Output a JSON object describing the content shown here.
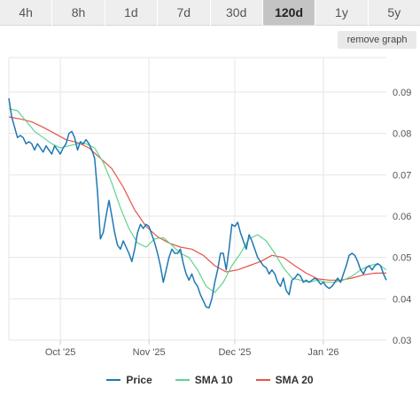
{
  "tabs": [
    {
      "label": "4h",
      "active": false
    },
    {
      "label": "8h",
      "active": false
    },
    {
      "label": "1d",
      "active": false
    },
    {
      "label": "7d",
      "active": false
    },
    {
      "label": "30d",
      "active": false
    },
    {
      "label": "120d",
      "active": true
    },
    {
      "label": "1y",
      "active": false
    },
    {
      "label": "5y",
      "active": false
    }
  ],
  "remove_graph_label": "remove graph",
  "colors": {
    "price": "#1f77b4",
    "sma10": "#5fd38d",
    "sma20": "#e8534a",
    "grid": "#e6e6e6"
  },
  "chart_data": {
    "type": "line",
    "x_start": "2025-09-13",
    "x_end": "2026-01-23",
    "ylim": [
      0.03,
      0.09
    ],
    "yticks": [
      0.03,
      0.04,
      0.05,
      0.06,
      0.07,
      0.08,
      0.09
    ],
    "ytick_labels": [
      "0.03",
      "0.04",
      "0.05",
      "0.06",
      "0.07",
      "0.08",
      "0.09"
    ],
    "xticks": [
      {
        "date": "2025-10-01",
        "label": "Oct '25"
      },
      {
        "date": "2025-11-01",
        "label": "Nov '25"
      },
      {
        "date": "2025-12-01",
        "label": "Dec '25"
      },
      {
        "date": "2026-01-01",
        "label": "Jan '26"
      }
    ],
    "grid": true,
    "legend_position": "bottom",
    "series": [
      {
        "name": "Price",
        "color": "#1f77b4",
        "points": [
          [
            "2025-09-13",
            0.0885
          ],
          [
            "2025-09-14",
            0.084
          ],
          [
            "2025-09-15",
            0.0815
          ],
          [
            "2025-09-16",
            0.079
          ],
          [
            "2025-09-17",
            0.0795
          ],
          [
            "2025-09-18",
            0.079
          ],
          [
            "2025-09-19",
            0.0775
          ],
          [
            "2025-09-20",
            0.078
          ],
          [
            "2025-09-21",
            0.0775
          ],
          [
            "2025-09-22",
            0.076
          ],
          [
            "2025-09-23",
            0.0775
          ],
          [
            "2025-09-24",
            0.0765
          ],
          [
            "2025-09-25",
            0.0755
          ],
          [
            "2025-09-26",
            0.077
          ],
          [
            "2025-09-27",
            0.076
          ],
          [
            "2025-09-28",
            0.075
          ],
          [
            "2025-09-29",
            0.077
          ],
          [
            "2025-09-30",
            0.076
          ],
          [
            "2025-10-01",
            0.075
          ],
          [
            "2025-10-02",
            0.0765
          ],
          [
            "2025-10-03",
            0.0775
          ],
          [
            "2025-10-04",
            0.08
          ],
          [
            "2025-10-05",
            0.0805
          ],
          [
            "2025-10-06",
            0.079
          ],
          [
            "2025-10-07",
            0.076
          ],
          [
            "2025-10-08",
            0.078
          ],
          [
            "2025-10-09",
            0.0775
          ],
          [
            "2025-10-10",
            0.0785
          ],
          [
            "2025-10-11",
            0.0775
          ],
          [
            "2025-10-12",
            0.076
          ],
          [
            "2025-10-13",
            0.074
          ],
          [
            "2025-10-14",
            0.066
          ],
          [
            "2025-10-15",
            0.0545
          ],
          [
            "2025-10-16",
            0.056
          ],
          [
            "2025-10-17",
            0.06
          ],
          [
            "2025-10-18",
            0.0638
          ],
          [
            "2025-10-19",
            0.06
          ],
          [
            "2025-10-20",
            0.056
          ],
          [
            "2025-10-21",
            0.053
          ],
          [
            "2025-10-22",
            0.052
          ],
          [
            "2025-10-23",
            0.054
          ],
          [
            "2025-10-24",
            0.0525
          ],
          [
            "2025-10-25",
            0.051
          ],
          [
            "2025-10-26",
            0.049
          ],
          [
            "2025-10-27",
            0.052
          ],
          [
            "2025-10-28",
            0.056
          ],
          [
            "2025-10-29",
            0.058
          ],
          [
            "2025-10-30",
            0.057
          ],
          [
            "2025-10-31",
            0.058
          ],
          [
            "2025-11-01",
            0.0575
          ],
          [
            "2025-11-02",
            0.0555
          ],
          [
            "2025-11-03",
            0.0535
          ],
          [
            "2025-11-04",
            0.051
          ],
          [
            "2025-11-05",
            0.048
          ],
          [
            "2025-11-06",
            0.044
          ],
          [
            "2025-11-07",
            0.047
          ],
          [
            "2025-11-08",
            0.05
          ],
          [
            "2025-11-09",
            0.052
          ],
          [
            "2025-11-10",
            0.051
          ],
          [
            "2025-11-11",
            0.051
          ],
          [
            "2025-11-12",
            0.052
          ],
          [
            "2025-11-13",
            0.0485
          ],
          [
            "2025-11-14",
            0.046
          ],
          [
            "2025-11-15",
            0.0445
          ],
          [
            "2025-11-16",
            0.046
          ],
          [
            "2025-11-17",
            0.044
          ],
          [
            "2025-11-18",
            0.043
          ],
          [
            "2025-11-19",
            0.041
          ],
          [
            "2025-11-20",
            0.0395
          ],
          [
            "2025-11-21",
            0.038
          ],
          [
            "2025-11-22",
            0.0378
          ],
          [
            "2025-11-23",
            0.04
          ],
          [
            "2025-11-24",
            0.044
          ],
          [
            "2025-11-25",
            0.047
          ],
          [
            "2025-11-26",
            0.051
          ],
          [
            "2025-11-27",
            0.051
          ],
          [
            "2025-11-28",
            0.047
          ],
          [
            "2025-11-29",
            0.052
          ],
          [
            "2025-11-30",
            0.058
          ],
          [
            "2025-12-01",
            0.0575
          ],
          [
            "2025-12-02",
            0.0585
          ],
          [
            "2025-12-03",
            0.056
          ],
          [
            "2025-12-04",
            0.054
          ],
          [
            "2025-12-05",
            0.052
          ],
          [
            "2025-12-06",
            0.0555
          ],
          [
            "2025-12-07",
            0.054
          ],
          [
            "2025-12-08",
            0.052
          ],
          [
            "2025-12-09",
            0.05
          ],
          [
            "2025-12-10",
            0.049
          ],
          [
            "2025-12-11",
            0.048
          ],
          [
            "2025-12-12",
            0.0475
          ],
          [
            "2025-12-13",
            0.046
          ],
          [
            "2025-12-14",
            0.047
          ],
          [
            "2025-12-15",
            0.046
          ],
          [
            "2025-12-16",
            0.044
          ],
          [
            "2025-12-17",
            0.043
          ],
          [
            "2025-12-18",
            0.045
          ],
          [
            "2025-12-19",
            0.042
          ],
          [
            "2025-12-20",
            0.041
          ],
          [
            "2025-12-21",
            0.0445
          ],
          [
            "2025-12-22",
            0.045
          ],
          [
            "2025-12-23",
            0.046
          ],
          [
            "2025-12-24",
            0.0455
          ],
          [
            "2025-12-25",
            0.044
          ],
          [
            "2025-12-26",
            0.0445
          ],
          [
            "2025-12-27",
            0.044
          ],
          [
            "2025-12-28",
            0.0445
          ],
          [
            "2025-12-29",
            0.045
          ],
          [
            "2025-12-30",
            0.0445
          ],
          [
            "2025-12-31",
            0.0435
          ],
          [
            "2026-01-01",
            0.044
          ],
          [
            "2026-01-02",
            0.043
          ],
          [
            "2026-01-03",
            0.0425
          ],
          [
            "2026-01-04",
            0.043
          ],
          [
            "2026-01-05",
            0.044
          ],
          [
            "2026-01-06",
            0.045
          ],
          [
            "2026-01-07",
            0.044
          ],
          [
            "2026-01-08",
            0.046
          ],
          [
            "2026-01-09",
            0.048
          ],
          [
            "2026-01-10",
            0.0505
          ],
          [
            "2026-01-11",
            0.051
          ],
          [
            "2026-01-12",
            0.0505
          ],
          [
            "2026-01-13",
            0.049
          ],
          [
            "2026-01-14",
            0.047
          ],
          [
            "2026-01-15",
            0.046
          ],
          [
            "2026-01-16",
            0.0475
          ],
          [
            "2026-01-17",
            0.048
          ],
          [
            "2026-01-18",
            0.047
          ],
          [
            "2026-01-19",
            0.048
          ],
          [
            "2026-01-20",
            0.0485
          ],
          [
            "2026-01-21",
            0.048
          ],
          [
            "2026-01-22",
            0.046
          ],
          [
            "2026-01-23",
            0.0445
          ]
        ]
      },
      {
        "name": "SMA 10",
        "color": "#5fd38d",
        "points": [
          [
            "2025-09-13",
            0.086
          ],
          [
            "2025-09-16",
            0.0855
          ],
          [
            "2025-09-19",
            0.083
          ],
          [
            "2025-09-22",
            0.0805
          ],
          [
            "2025-09-25",
            0.079
          ],
          [
            "2025-09-28",
            0.0775
          ],
          [
            "2025-10-01",
            0.0765
          ],
          [
            "2025-10-04",
            0.077
          ],
          [
            "2025-10-07",
            0.0775
          ],
          [
            "2025-10-10",
            0.0775
          ],
          [
            "2025-10-13",
            0.0765
          ],
          [
            "2025-10-16",
            0.073
          ],
          [
            "2025-10-19",
            0.068
          ],
          [
            "2025-10-22",
            0.062
          ],
          [
            "2025-10-25",
            0.057
          ],
          [
            "2025-10-28",
            0.0535
          ],
          [
            "2025-10-31",
            0.0525
          ],
          [
            "2025-11-03",
            0.0545
          ],
          [
            "2025-11-06",
            0.0548
          ],
          [
            "2025-11-09",
            0.053
          ],
          [
            "2025-11-12",
            0.051
          ],
          [
            "2025-11-15",
            0.05
          ],
          [
            "2025-11-18",
            0.047
          ],
          [
            "2025-11-21",
            0.043
          ],
          [
            "2025-11-24",
            0.0415
          ],
          [
            "2025-11-27",
            0.044
          ],
          [
            "2025-11-30",
            0.048
          ],
          [
            "2025-12-03",
            0.051
          ],
          [
            "2025-12-06",
            0.0545
          ],
          [
            "2025-12-09",
            0.0555
          ],
          [
            "2025-12-12",
            0.054
          ],
          [
            "2025-12-15",
            0.051
          ],
          [
            "2025-12-18",
            0.0475
          ],
          [
            "2025-12-21",
            0.045
          ],
          [
            "2025-12-24",
            0.0445
          ],
          [
            "2025-12-27",
            0.044
          ],
          [
            "2025-12-30",
            0.0445
          ],
          [
            "2026-01-02",
            0.044
          ],
          [
            "2026-01-05",
            0.044
          ],
          [
            "2026-01-08",
            0.0445
          ],
          [
            "2026-01-11",
            0.0455
          ],
          [
            "2026-01-14",
            0.047
          ],
          [
            "2026-01-17",
            0.048
          ],
          [
            "2026-01-20",
            0.0485
          ],
          [
            "2026-01-23",
            0.047
          ]
        ]
      },
      {
        "name": "SMA 20",
        "color": "#e8534a",
        "points": [
          [
            "2025-09-13",
            0.084
          ],
          [
            "2025-09-17",
            0.0835
          ],
          [
            "2025-09-21",
            0.0828
          ],
          [
            "2025-09-25",
            0.0815
          ],
          [
            "2025-09-29",
            0.08
          ],
          [
            "2025-10-03",
            0.0785
          ],
          [
            "2025-10-07",
            0.0778
          ],
          [
            "2025-10-11",
            0.0765
          ],
          [
            "2025-10-15",
            0.074
          ],
          [
            "2025-10-19",
            0.0715
          ],
          [
            "2025-10-23",
            0.067
          ],
          [
            "2025-10-27",
            0.0615
          ],
          [
            "2025-10-31",
            0.0575
          ],
          [
            "2025-11-04",
            0.055
          ],
          [
            "2025-11-08",
            0.0535
          ],
          [
            "2025-11-12",
            0.0525
          ],
          [
            "2025-11-16",
            0.052
          ],
          [
            "2025-11-20",
            0.0505
          ],
          [
            "2025-11-24",
            0.048
          ],
          [
            "2025-11-28",
            0.0465
          ],
          [
            "2025-12-02",
            0.047
          ],
          [
            "2025-12-06",
            0.048
          ],
          [
            "2025-12-10",
            0.049
          ],
          [
            "2025-12-14",
            0.0505
          ],
          [
            "2025-12-18",
            0.05
          ],
          [
            "2025-12-22",
            0.048
          ],
          [
            "2025-12-26",
            0.0462
          ],
          [
            "2025-12-30",
            0.0448
          ],
          [
            "2026-01-03",
            0.0445
          ],
          [
            "2026-01-07",
            0.0445
          ],
          [
            "2026-01-11",
            0.045
          ],
          [
            "2026-01-15",
            0.0458
          ],
          [
            "2026-01-19",
            0.0462
          ],
          [
            "2026-01-23",
            0.0462
          ]
        ]
      }
    ]
  }
}
